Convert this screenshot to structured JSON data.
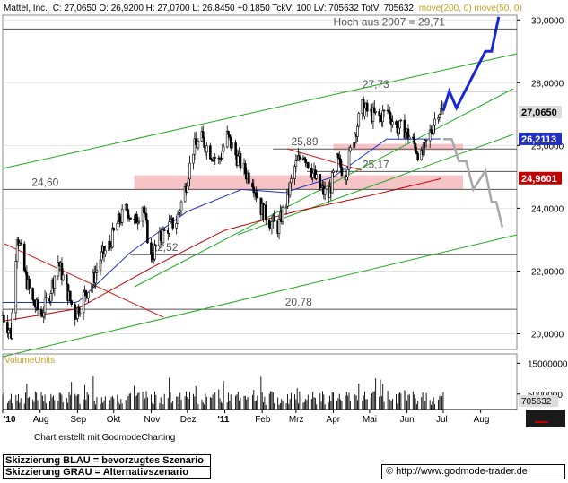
{
  "header": {
    "symbol": "Mattel, Inc.",
    "quote": "C: 27,0650 O: 26,9200 H: 27,0700 L: 26,8450 +0,1850 TckV: 100 LV: 705632 TotV: 705632",
    "indicators": "move(200, 0) move(50, 0)",
    "colors": {
      "symbol": "#000000",
      "ma200": "#c8a020",
      "ma50": "#2030c0"
    }
  },
  "chart_data": {
    "type": "candlestick",
    "price_axis": {
      "ticks": [
        20,
        22,
        24,
        26,
        28,
        30
      ],
      "tick_labels": [
        "20,0000",
        "22,0000",
        "24,0000",
        "26,0000",
        "28,0000",
        "30,0000"
      ],
      "ylim": [
        19.5,
        30.15
      ]
    },
    "time_axis": {
      "labels": [
        "'10",
        "Aug",
        "Sep",
        "Okt",
        "Nov",
        "Dez",
        "'11",
        "Feb",
        "Mrz",
        "Apr",
        "Mai",
        "Jun",
        "Jul",
        "Aug"
      ],
      "dates": [
        "2010-07-01",
        "2010-08-01",
        "2010-09-01",
        "2010-10-01",
        "2010-11-01",
        "2010-12-01",
        "2011-01-01",
        "2011-02-01",
        "2011-03-01",
        "2011-04-01",
        "2011-05-01",
        "2011-06-01",
        "2011-07-01",
        "2011-08-01"
      ]
    },
    "close_path": [
      [
        "2010-07-01",
        20.6
      ],
      [
        "2010-07-08",
        20.0
      ],
      [
        "2010-07-13",
        23.2
      ],
      [
        "2010-07-20",
        21.8
      ],
      [
        "2010-07-26",
        21.0
      ],
      [
        "2010-08-02",
        20.6
      ],
      [
        "2010-08-09",
        21.3
      ],
      [
        "2010-08-16",
        22.3
      ],
      [
        "2010-08-23",
        21.4
      ],
      [
        "2010-08-30",
        20.6
      ],
      [
        "2010-09-06",
        21.2
      ],
      [
        "2010-09-13",
        21.6
      ],
      [
        "2010-09-20",
        22.4
      ],
      [
        "2010-09-27",
        22.8
      ],
      [
        "2010-10-04",
        23.5
      ],
      [
        "2010-10-12",
        24.0
      ],
      [
        "2010-10-18",
        23.5
      ],
      [
        "2010-10-25",
        24.1
      ],
      [
        "2010-11-01",
        22.4
      ],
      [
        "2010-11-08",
        23.0
      ],
      [
        "2010-11-15",
        23.4
      ],
      [
        "2010-11-22",
        23.6
      ],
      [
        "2010-11-29",
        24.6
      ],
      [
        "2010-12-06",
        25.9
      ],
      [
        "2010-12-13",
        26.2
      ],
      [
        "2010-12-20",
        25.8
      ],
      [
        "2010-12-27",
        25.5
      ],
      [
        "2011-01-03",
        26.3
      ],
      [
        "2011-01-10",
        25.7
      ],
      [
        "2011-01-17",
        25.2
      ],
      [
        "2011-01-24",
        24.9
      ],
      [
        "2011-01-31",
        24.0
      ],
      [
        "2011-02-07",
        23.6
      ],
      [
        "2011-02-14",
        23.4
      ],
      [
        "2011-02-21",
        24.2
      ],
      [
        "2011-02-28",
        25.3
      ],
      [
        "2011-03-07",
        25.8
      ],
      [
        "2011-03-14",
        25.2
      ],
      [
        "2011-03-21",
        24.6
      ],
      [
        "2011-03-28",
        24.4
      ],
      [
        "2011-04-04",
        25.5
      ],
      [
        "2011-04-11",
        25.1
      ],
      [
        "2011-04-18",
        26.3
      ],
      [
        "2011-04-25",
        27.2
      ],
      [
        "2011-05-02",
        27.0
      ],
      [
        "2011-05-09",
        26.9
      ],
      [
        "2011-05-16",
        27.1
      ],
      [
        "2011-05-23",
        26.6
      ],
      [
        "2011-05-30",
        26.5
      ],
      [
        "2011-06-06",
        26.1
      ],
      [
        "2011-06-13",
        25.6
      ],
      [
        "2011-06-20",
        26.4
      ],
      [
        "2011-06-27",
        27.15
      ],
      [
        "2011-07-01",
        27.07
      ]
    ],
    "ma200_path": [
      [
        "2010-07-01",
        20.4
      ],
      [
        "2010-09-01",
        20.8
      ],
      [
        "2010-11-01",
        22.1
      ],
      [
        "2011-01-01",
        23.3
      ],
      [
        "2011-03-01",
        23.9
      ],
      [
        "2011-05-01",
        24.4
      ],
      [
        "2011-07-01",
        24.96
      ]
    ],
    "ma50_path": [
      [
        "2010-07-01",
        21.0
      ],
      [
        "2010-09-01",
        21.0
      ],
      [
        "2010-10-15",
        22.6
      ],
      [
        "2010-12-01",
        23.9
      ],
      [
        "2011-01-15",
        24.6
      ],
      [
        "2011-02-20",
        24.5
      ],
      [
        "2011-04-01",
        25.0
      ],
      [
        "2011-05-15",
        26.2
      ],
      [
        "2011-07-01",
        26.21
      ]
    ],
    "current_labels": [
      {
        "text": "27,0650",
        "value": 27.065,
        "bg": "#dcdcdc",
        "fg": "#000000"
      },
      {
        "text": "26,2113",
        "value": 26.2113,
        "bg": "#2030c0",
        "fg": "#ffffff"
      },
      {
        "text": "24,9601",
        "value": 24.9601,
        "bg": "#c00000",
        "fg": "#ffffff"
      }
    ],
    "levels": [
      {
        "text": "Hoch aus 2007  =  29,71",
        "value": 29.71,
        "label_date": "2011-04-01"
      },
      {
        "text": "27,73",
        "value": 27.73,
        "label_date": "2011-04-25"
      },
      {
        "text": "25,89",
        "value": 25.89,
        "label_date": "2011-02-25"
      },
      {
        "text": "25,17",
        "value": 25.17,
        "label_date": "2011-04-25"
      },
      {
        "text": "24,60",
        "value": 24.6,
        "label_date": "2010-07-25"
      },
      {
        "text": "22,52",
        "value": 22.52,
        "label_date": "2010-11-01"
      },
      {
        "text": "20,78",
        "value": 20.78,
        "label_date": "2011-02-20"
      }
    ],
    "zones": [
      {
        "from": 24.6,
        "to": 25.05,
        "start": "2010-10-18"
      },
      {
        "from": 25.85,
        "to": 26.05,
        "start": "2011-04-01"
      }
    ],
    "scenario_blue": [
      [
        "2011-07-01",
        27.1
      ],
      [
        "2011-07-06",
        27.73
      ],
      [
        "2011-07-12",
        27.2
      ],
      [
        "2011-08-05",
        29.0
      ],
      [
        "2011-08-10",
        29.0
      ],
      [
        "2011-08-16",
        30.1
      ]
    ],
    "scenario_grey": [
      [
        "2011-07-01",
        26.2
      ],
      [
        "2011-07-08",
        26.2
      ],
      [
        "2011-07-14",
        25.5
      ],
      [
        "2011-07-20",
        25.5
      ],
      [
        "2011-07-26",
        24.6
      ],
      [
        "2011-08-05",
        25.2
      ],
      [
        "2011-08-10",
        24.2
      ],
      [
        "2011-08-14",
        24.2
      ],
      [
        "2011-08-19",
        23.4
      ]
    ],
    "volume": {
      "label": "VolumeUnits",
      "ticks": [
        5000000,
        15000000
      ],
      "tick_labels": [
        "5000000",
        "15000000"
      ],
      "current_label": "705632",
      "max": 18000000
    }
  },
  "footer": {
    "credit": "Chart erstellt mit GodmodeCharting",
    "legend_blue": "Skizzierung BLAU = bevorzugtes Szenario",
    "legend_grey": "Skizzierung GRAU = Alternativszenario",
    "url_prefix": "©",
    "url": "http://www.godmode-trader.de"
  }
}
